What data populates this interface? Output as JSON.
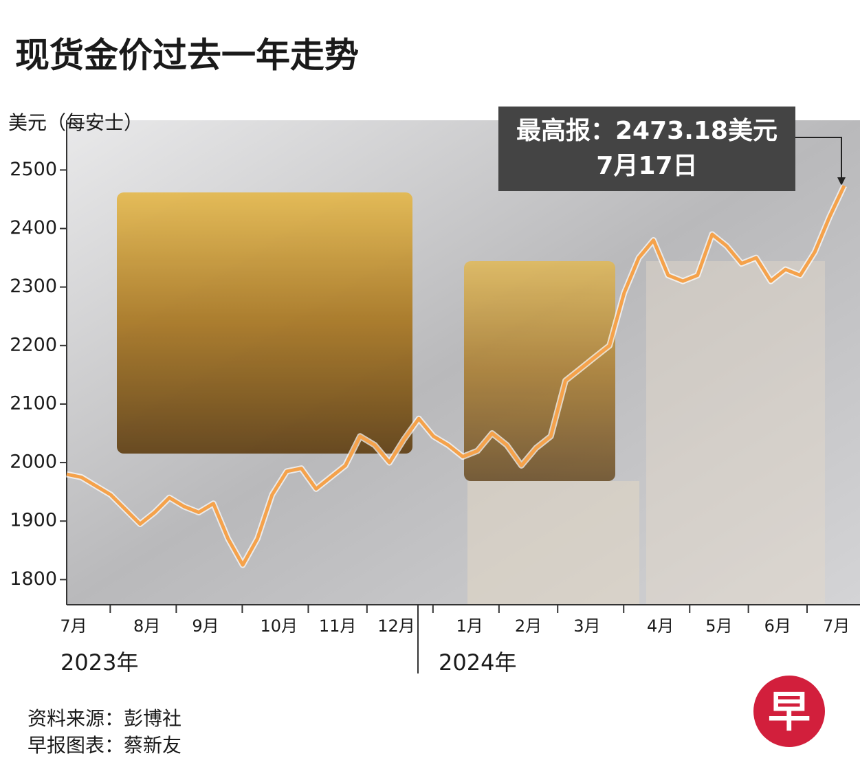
{
  "chart_data": {
    "type": "line",
    "title": "现货金价过去一年走势",
    "y_label": "美元（每安士）",
    "categories": [
      "7月",
      null,
      null,
      null,
      null,
      "8月",
      null,
      null,
      null,
      "9月",
      null,
      null,
      null,
      null,
      "10月",
      null,
      null,
      null,
      "11月",
      null,
      null,
      null,
      "12月",
      null,
      null,
      null,
      null,
      "1月",
      null,
      null,
      null,
      "2月",
      null,
      null,
      null,
      "3月",
      null,
      null,
      null,
      null,
      "4月",
      null,
      null,
      null,
      "5月",
      null,
      null,
      null,
      "6月",
      null,
      null,
      null,
      "7月",
      null
    ],
    "year_labels": [
      "2023年",
      "2024年"
    ],
    "series": [
      {
        "name": "现货金价",
        "color": "#f5a24b",
        "values": [
          1980,
          1975,
          1960,
          1945,
          1920,
          1895,
          1915,
          1940,
          1925,
          1915,
          1930,
          1870,
          1825,
          1870,
          1945,
          1985,
          1990,
          1955,
          1975,
          1995,
          2045,
          2030,
          2000,
          2040,
          2075,
          2045,
          2030,
          2010,
          2020,
          2050,
          2030,
          1995,
          2025,
          2045,
          2140,
          2160,
          2180,
          2200,
          2290,
          2350,
          2380,
          2320,
          2310,
          2320,
          2390,
          2370,
          2340,
          2350,
          2310,
          2330,
          2320,
          2360,
          2420,
          2473.18
        ]
      }
    ],
    "ylim": [
      1757,
      2585
    ],
    "yticks": [
      1800,
      1900,
      2000,
      2100,
      2200,
      2300,
      2400,
      2500
    ],
    "annotation": [
      "最高报：2473.18美元",
      "7月17日"
    ],
    "source": [
      "资料来源：彭博社",
      "早报图表：蔡新友"
    ],
    "logo": "早"
  }
}
